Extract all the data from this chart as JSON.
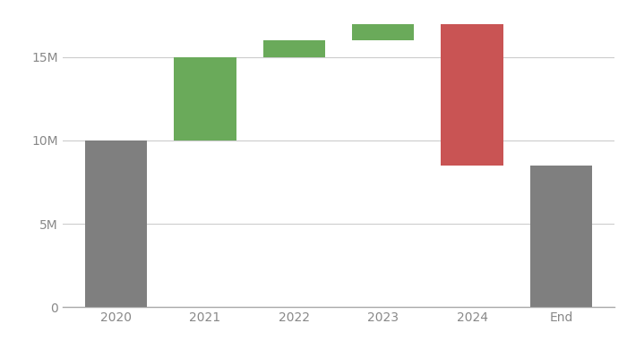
{
  "categories": [
    "2020",
    "2021",
    "2022",
    "2023",
    "2024",
    "End"
  ],
  "start_values": [
    0,
    10000000,
    15000000,
    16000000,
    8500000,
    0
  ],
  "bar_heights": [
    10000000,
    5000000,
    1000000,
    1000000,
    8500000,
    8500000
  ],
  "colors": [
    "#7f7f7f",
    "#6aaa5a",
    "#6aaa5a",
    "#6aaa5a",
    "#c95454",
    "#7f7f7f"
  ],
  "y_ticks": [
    0,
    5000000,
    10000000,
    15000000
  ],
  "y_tick_labels": [
    "0",
    "5M",
    "10M",
    "15M"
  ],
  "ylim": [
    0,
    17800000
  ],
  "bar_width": 0.7,
  "background_color": "#ffffff",
  "grid_color": "#cccccc",
  "tick_color": "#888888",
  "figsize": [
    7.0,
    3.9
  ],
  "dpi": 100
}
